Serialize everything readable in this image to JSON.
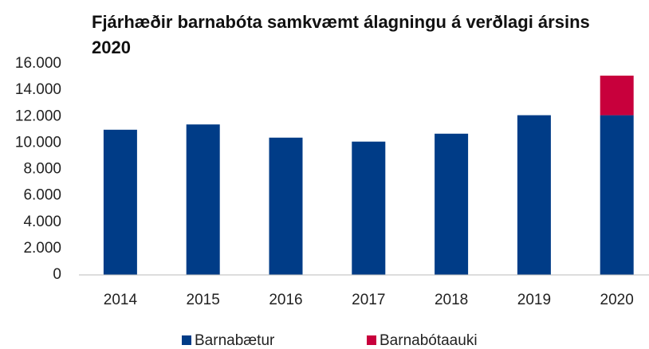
{
  "chart_data": {
    "type": "stacked_bar",
    "title": "Fjárhæðir barnabóta samkvæmt álagningu á verðlagi ársins 2020",
    "categories": [
      "2014",
      "2015",
      "2016",
      "2017",
      "2018",
      "2019",
      "2020"
    ],
    "series": [
      {
        "name": "Barnabætur",
        "color": "#003c87",
        "values": [
          11000,
          11400,
          10400,
          10100,
          10700,
          12100,
          12100
        ]
      },
      {
        "name": "Barnabótaauki",
        "color": "#c8003c",
        "values": [
          null,
          null,
          null,
          null,
          null,
          null,
          3000
        ]
      }
    ],
    "ylim": [
      0,
      16000
    ],
    "yticks": [
      0,
      {
        "value": 2000,
        "label": "2.000"
      },
      {
        "value": 4000,
        "label": "4.000"
      },
      {
        "value": 6000,
        "label": "6.000"
      },
      {
        "value": 8000,
        "label": "8.000"
      },
      {
        "value": 10000,
        "label": "10.000"
      },
      {
        "value": 12000,
        "label": "12.000"
      },
      {
        "value": 14000,
        "label": "14.000"
      },
      {
        "value": 16000,
        "label": "16.000"
      }
    ],
    "grid": false,
    "legend": "bottom"
  }
}
